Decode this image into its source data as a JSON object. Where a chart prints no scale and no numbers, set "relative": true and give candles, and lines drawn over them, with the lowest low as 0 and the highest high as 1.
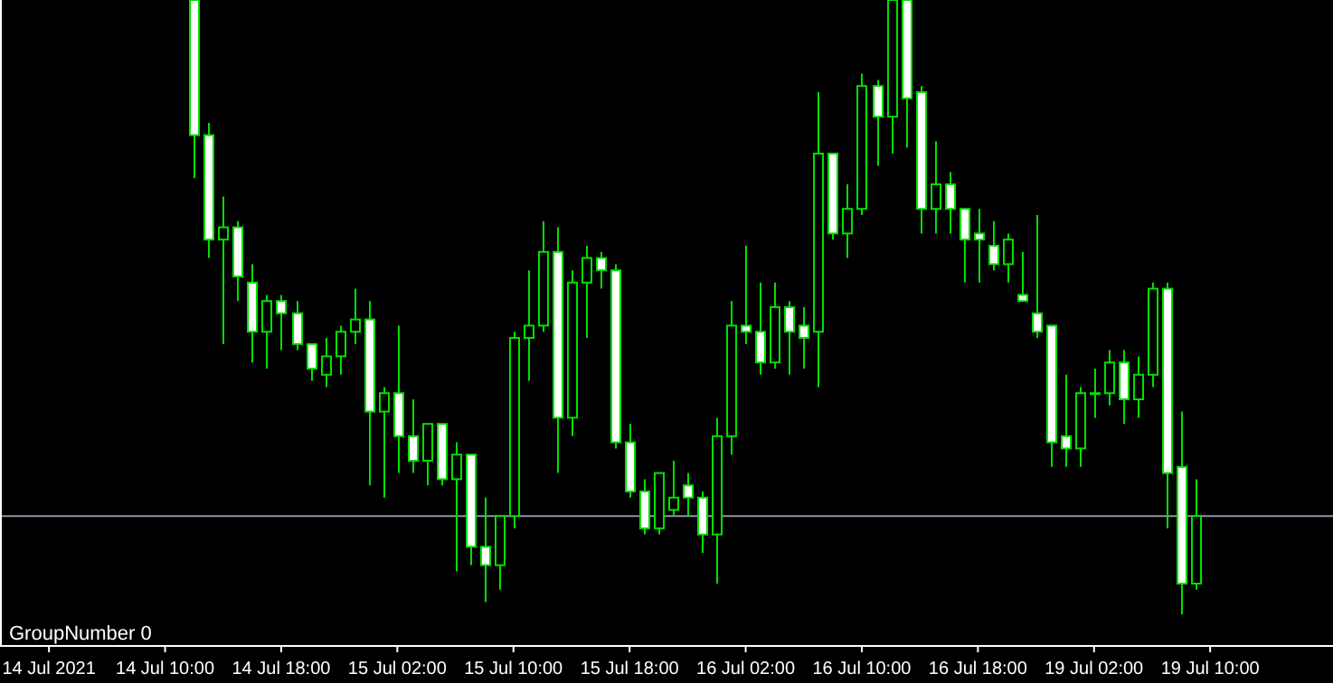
{
  "chart_data": {
    "type": "candlestick",
    "relative": true,
    "categories": [
      null,
      null,
      null,
      "14 Jul 2021",
      null,
      null,
      null,
      null,
      null,
      null,
      null,
      "14 Jul 10:00",
      null,
      null,
      null,
      null,
      null,
      null,
      null,
      "14 Jul 18:00",
      null,
      null,
      null,
      null,
      null,
      null,
      null,
      "15 Jul 02:00",
      null,
      null,
      null,
      null,
      null,
      null,
      null,
      "15 Jul 10:00",
      null,
      null,
      null,
      null,
      null,
      null,
      null,
      "15 Jul 18:00",
      null,
      null,
      null,
      null,
      null,
      null,
      null,
      "16 Jul 02:00",
      null,
      null,
      null,
      null,
      null,
      null,
      null,
      "16 Jul 10:00",
      null,
      null,
      null,
      null,
      null,
      null,
      null,
      "16 Jul 18:00",
      null,
      null,
      null,
      null,
      null,
      null,
      null,
      "19 Jul 02:00",
      null,
      null,
      null,
      null,
      null,
      null,
      null,
      "19 Jul 10:00"
    ],
    "ohlc": [
      null,
      null,
      null,
      null,
      null,
      null,
      null,
      null,
      null,
      null,
      null,
      null,
      null,
      [
        1,
        1,
        0.71,
        0.78
      ],
      [
        0.78,
        0.8,
        0.58,
        0.61
      ],
      [
        0.61,
        0.68,
        0.44,
        0.63
      ],
      [
        0.63,
        0.64,
        0.51,
        0.55
      ],
      [
        0.54,
        0.57,
        0.41,
        0.46
      ],
      [
        0.46,
        0.52,
        0.4,
        0.51
      ],
      [
        0.51,
        0.52,
        0.43,
        0.49
      ],
      [
        0.49,
        0.51,
        0.43,
        0.44
      ],
      [
        0.44,
        0.44,
        0.38,
        0.4
      ],
      [
        0.39,
        0.45,
        0.37,
        0.42
      ],
      [
        0.42,
        0.47,
        0.39,
        0.46
      ],
      [
        0.46,
        0.53,
        0.44,
        0.48
      ],
      [
        0.48,
        0.51,
        0.21,
        0.33
      ],
      [
        0.33,
        0.37,
        0.19,
        0.36
      ],
      [
        0.36,
        0.47,
        0.23,
        0.29
      ],
      [
        0.29,
        0.35,
        0.23,
        0.25
      ],
      [
        0.25,
        0.31,
        0.21,
        0.31
      ],
      [
        0.31,
        0.31,
        0.21,
        0.22
      ],
      [
        0.22,
        0.28,
        0.07,
        0.26
      ],
      [
        0.26,
        0.26,
        0.08,
        0.11
      ],
      [
        0.11,
        0.19,
        0.02,
        0.08
      ],
      [
        0.08,
        0.16,
        0.04,
        0.16
      ],
      [
        0.16,
        0.46,
        0.14,
        0.45
      ],
      [
        0.45,
        0.56,
        0.38,
        0.47
      ],
      [
        0.47,
        0.64,
        0.46,
        0.59
      ],
      [
        0.59,
        0.63,
        0.23,
        0.32
      ],
      [
        0.32,
        0.56,
        0.29,
        0.54
      ],
      [
        0.54,
        0.6,
        0.45,
        0.58
      ],
      [
        0.58,
        0.59,
        0.53,
        0.56
      ],
      [
        0.56,
        0.57,
        0.27,
        0.28
      ],
      [
        0.28,
        0.31,
        0.19,
        0.2
      ],
      [
        0.2,
        0.22,
        0.13,
        0.14
      ],
      [
        0.14,
        0.23,
        0.13,
        0.23
      ],
      [
        0.17,
        0.25,
        0.16,
        0.19
      ],
      [
        0.21,
        0.23,
        0.16,
        0.19
      ],
      [
        0.19,
        0.2,
        0.1,
        0.13
      ],
      [
        0.13,
        0.32,
        0.05,
        0.29
      ],
      [
        0.29,
        0.51,
        0.26,
        0.47
      ],
      [
        0.47,
        0.6,
        0.44,
        0.46
      ],
      [
        0.46,
        0.54,
        0.39,
        0.41
      ],
      [
        0.41,
        0.54,
        0.4,
        0.5
      ],
      [
        0.5,
        0.51,
        0.39,
        0.46
      ],
      [
        0.47,
        0.5,
        0.4,
        0.45
      ],
      [
        0.46,
        0.85,
        0.37,
        0.75
      ],
      [
        0.75,
        0.75,
        0.61,
        0.62
      ],
      [
        0.62,
        0.7,
        0.58,
        0.66
      ],
      [
        0.66,
        0.88,
        0.65,
        0.86
      ],
      [
        0.86,
        0.87,
        0.73,
        0.81
      ],
      [
        0.81,
        1,
        0.75,
        1
      ],
      [
        1,
        1,
        0.76,
        0.84
      ],
      [
        0.85,
        0.86,
        0.62,
        0.66
      ],
      [
        0.66,
        0.77,
        0.62,
        0.7
      ],
      [
        0.7,
        0.72,
        0.62,
        0.66
      ],
      [
        0.66,
        0.66,
        0.54,
        0.61
      ],
      [
        0.62,
        0.66,
        0.54,
        0.61
      ],
      [
        0.6,
        0.64,
        0.56,
        0.57
      ],
      [
        0.57,
        0.62,
        0.54,
        0.61
      ],
      [
        0.52,
        0.59,
        0.51,
        0.51
      ],
      [
        0.49,
        0.65,
        0.45,
        0.46
      ],
      [
        0.47,
        0.47,
        0.24,
        0.28
      ],
      [
        0.29,
        0.39,
        0.24,
        0.27
      ],
      [
        0.27,
        0.37,
        0.24,
        0.36
      ],
      [
        0.36,
        0.4,
        0.32,
        0.36
      ],
      [
        0.36,
        0.43,
        0.34,
        0.41
      ],
      [
        0.41,
        0.43,
        0.31,
        0.35
      ],
      [
        0.35,
        0.42,
        0.32,
        0.39
      ],
      [
        0.39,
        0.54,
        0.37,
        0.53
      ],
      [
        0.53,
        0.54,
        0.14,
        0.23
      ],
      [
        0.24,
        0.33,
        0,
        0.05
      ],
      [
        0.05,
        0.22,
        0.04,
        0.16
      ],
      null
    ],
    "ref_lines": [
      {
        "axis": "y",
        "value": 0.16,
        "color": "#8a94a6"
      }
    ],
    "annotations": [
      "GroupNumber 0"
    ]
  }
}
